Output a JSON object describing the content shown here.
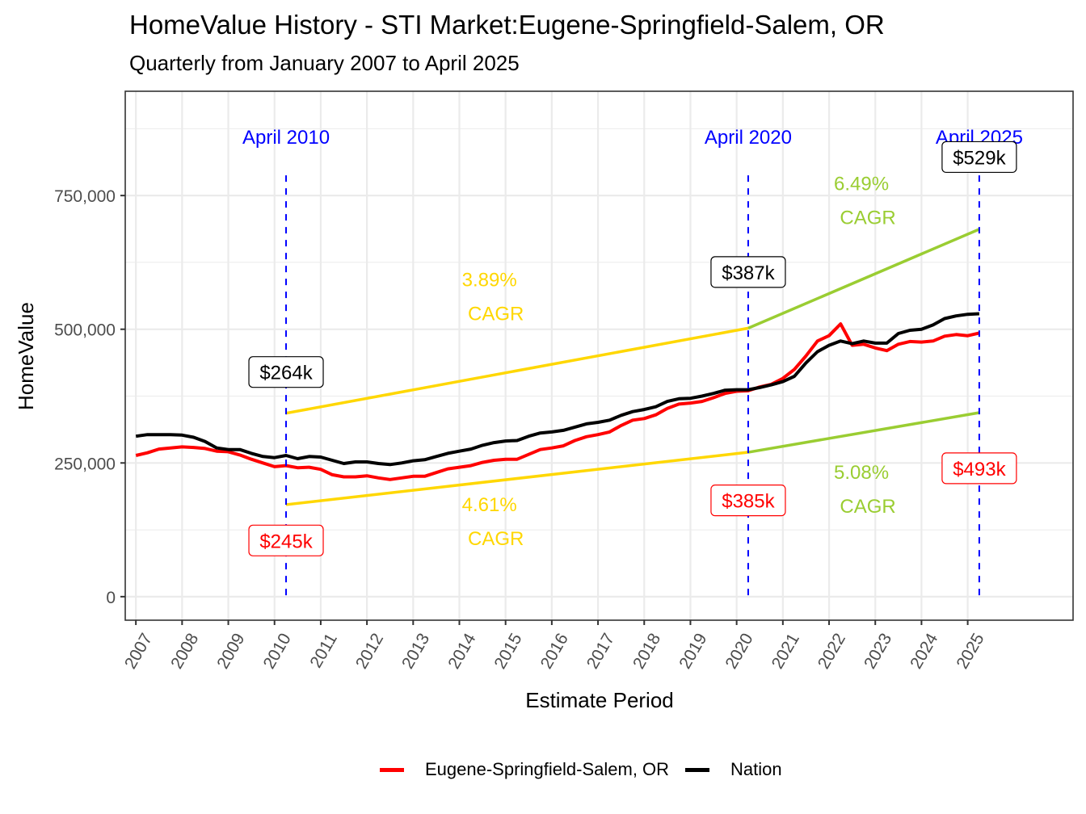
{
  "chart_data": {
    "type": "line",
    "title": "HomeValue History - STI Market:Eugene-Springfield-Salem, OR",
    "subtitle": "Quarterly from January 2007 to April 2025",
    "xlabel": "Estimate Period",
    "ylabel": "HomeValue",
    "xlim": [
      2006.77,
      2027.28
    ],
    "ylim": [
      -44000,
      945000
    ],
    "grid": true,
    "x_ticks": [
      2007,
      2008,
      2009,
      2010,
      2011,
      2012,
      2013,
      2014,
      2015,
      2016,
      2017,
      2018,
      2019,
      2020,
      2021,
      2022,
      2023,
      2024,
      2025
    ],
    "x_tick_labels": [
      "2007",
      "2008",
      "2009",
      "2010",
      "2011",
      "2012",
      "2013",
      "2014",
      "2015",
      "2016",
      "2017",
      "2018",
      "2019",
      "2020",
      "2021",
      "2022",
      "2023",
      "2024",
      "2025"
    ],
    "y_ticks": [
      0,
      250000,
      500000,
      750000
    ],
    "y_tick_labels": [
      "0",
      "250,000",
      "500,000",
      "750,000"
    ],
    "legend_position": "bottom",
    "series": [
      {
        "name": "Eugene-Springfield-Salem, OR",
        "color": "#FF0000",
        "x": [
          2007.0,
          2007.25,
          2007.5,
          2007.75,
          2008.0,
          2008.25,
          2008.5,
          2008.75,
          2009.0,
          2009.25,
          2009.5,
          2009.75,
          2010.0,
          2010.25,
          2010.5,
          2010.75,
          2011.0,
          2011.25,
          2011.5,
          2011.75,
          2012.0,
          2012.25,
          2012.5,
          2012.75,
          2013.0,
          2013.25,
          2013.5,
          2013.75,
          2014.0,
          2014.25,
          2014.5,
          2014.75,
          2015.0,
          2015.25,
          2015.5,
          2015.75,
          2016.0,
          2016.25,
          2016.5,
          2016.75,
          2017.0,
          2017.25,
          2017.5,
          2017.75,
          2018.0,
          2018.25,
          2018.5,
          2018.75,
          2019.0,
          2019.25,
          2019.5,
          2019.75,
          2020.0,
          2020.25,
          2020.5,
          2020.75,
          2021.0,
          2021.25,
          2021.5,
          2021.75,
          2022.0,
          2022.25,
          2022.5,
          2022.75,
          2023.0,
          2023.25,
          2023.5,
          2023.75,
          2024.0,
          2024.25,
          2024.5,
          2024.75,
          2025.0,
          2025.25
        ],
        "values": [
          264000,
          269000,
          276000,
          278000,
          280000,
          279000,
          277000,
          272000,
          271000,
          265000,
          257000,
          250000,
          243000,
          245000,
          241000,
          242000,
          238000,
          228000,
          224000,
          224000,
          226000,
          222000,
          219000,
          222000,
          225000,
          225000,
          232000,
          239000,
          242000,
          245000,
          251000,
          255000,
          257000,
          257000,
          266000,
          275000,
          278000,
          282000,
          292000,
          299000,
          303000,
          308000,
          320000,
          330000,
          333000,
          340000,
          352000,
          360000,
          362000,
          365000,
          372000,
          380000,
          384000,
          385000,
          392000,
          397000,
          408000,
          425000,
          450000,
          478000,
          488000,
          510000,
          470000,
          472000,
          465000,
          460000,
          472000,
          477000,
          476000,
          478000,
          487000,
          490000,
          488000,
          493000
        ]
      },
      {
        "name": "Nation",
        "color": "#000000",
        "x": [
          2007.0,
          2007.25,
          2007.5,
          2007.75,
          2008.0,
          2008.25,
          2008.5,
          2008.75,
          2009.0,
          2009.25,
          2009.5,
          2009.75,
          2010.0,
          2010.25,
          2010.5,
          2010.75,
          2011.0,
          2011.25,
          2011.5,
          2011.75,
          2012.0,
          2012.25,
          2012.5,
          2012.75,
          2013.0,
          2013.25,
          2013.5,
          2013.75,
          2014.0,
          2014.25,
          2014.5,
          2014.75,
          2015.0,
          2015.25,
          2015.5,
          2015.75,
          2016.0,
          2016.25,
          2016.5,
          2016.75,
          2017.0,
          2017.25,
          2017.5,
          2017.75,
          2018.0,
          2018.25,
          2018.5,
          2018.75,
          2019.0,
          2019.25,
          2019.5,
          2019.75,
          2020.0,
          2020.25,
          2020.5,
          2020.75,
          2021.0,
          2021.25,
          2021.5,
          2021.75,
          2022.0,
          2022.25,
          2022.5,
          2022.75,
          2023.0,
          2023.25,
          2023.5,
          2023.75,
          2024.0,
          2024.25,
          2024.5,
          2024.75,
          2025.0,
          2025.25
        ],
        "values": [
          300000,
          303000,
          303000,
          303000,
          302000,
          298000,
          290000,
          278000,
          275000,
          275000,
          268000,
          262000,
          260000,
          264000,
          258000,
          262000,
          261000,
          255000,
          249000,
          252000,
          252000,
          249000,
          247000,
          250000,
          254000,
          256000,
          262000,
          268000,
          272000,
          276000,
          283000,
          288000,
          291000,
          292000,
          300000,
          306000,
          308000,
          311000,
          317000,
          323000,
          326000,
          330000,
          339000,
          346000,
          350000,
          355000,
          365000,
          370000,
          371000,
          375000,
          380000,
          386000,
          387000,
          387000,
          391000,
          396000,
          402000,
          412000,
          437000,
          458000,
          470000,
          478000,
          473000,
          478000,
          474000,
          474000,
          492000,
          498000,
          500000,
          508000,
          520000,
          525000,
          528000,
          529000
        ]
      }
    ],
    "reference_lines": [
      {
        "x": 2010.25,
        "label": "April 2010",
        "color": "#0000FF",
        "style": "dashed"
      },
      {
        "x": 2020.25,
        "label": "April 2020",
        "color": "#0000FF",
        "style": "dashed"
      },
      {
        "x": 2025.25,
        "label": "April 2025",
        "color": "#0000FF",
        "style": "dashed"
      }
    ],
    "value_labels": [
      {
        "x": 2010.25,
        "y": 420000,
        "text": "$264k",
        "series": "Nation",
        "color": "#000000"
      },
      {
        "x": 2010.25,
        "y": 105000,
        "text": "$245k",
        "series": "Eugene-Springfield-Salem, OR",
        "color": "#FF0000"
      },
      {
        "x": 2020.25,
        "y": 607000,
        "text": "$387k",
        "series": "Nation",
        "color": "#000000"
      },
      {
        "x": 2020.25,
        "y": 180000,
        "text": "$385k",
        "series": "Eugene-Springfield-Salem, OR",
        "color": "#FF0000"
      },
      {
        "x": 2025.25,
        "y": 822000,
        "text": "$529k",
        "series": "Nation",
        "color": "#000000"
      },
      {
        "x": 2025.25,
        "y": 240000,
        "text": "$493k",
        "series": "Eugene-Springfield-Salem, OR",
        "color": "#FF0000"
      }
    ],
    "cagr_lines": [
      {
        "x": [
          2010.25,
          2020.25
        ],
        "y": [
          343000,
          502000
        ],
        "color": "#FFD700",
        "label_line1": "3.89%",
        "label_line2": "CAGR",
        "label_x": 2014.65,
        "label_y": 580000
      },
      {
        "x": [
          2020.25,
          2025.25
        ],
        "y": [
          502000,
          687000
        ],
        "color": "#9ACD32",
        "label_line1": "6.49%",
        "label_line2": "CAGR",
        "label_x": 2022.7,
        "label_y": 760000
      },
      {
        "x": [
          2010.25,
          2020.25
        ],
        "y": [
          172000,
          270000
        ],
        "color": "#FFD700",
        "label_line1": "4.61%",
        "label_line2": "CAGR",
        "label_x": 2014.65,
        "label_y": 160000
      },
      {
        "x": [
          2020.25,
          2025.25
        ],
        "y": [
          270000,
          344000
        ],
        "color": "#9ACD32",
        "label_line1": "5.08%",
        "label_line2": "CAGR",
        "label_x": 2022.7,
        "label_y": 220000
      }
    ]
  },
  "legend": {
    "items": [
      {
        "label": "Eugene-Springfield-Salem, OR",
        "color": "#FF0000"
      },
      {
        "label": "Nation",
        "color": "#000000"
      }
    ]
  }
}
